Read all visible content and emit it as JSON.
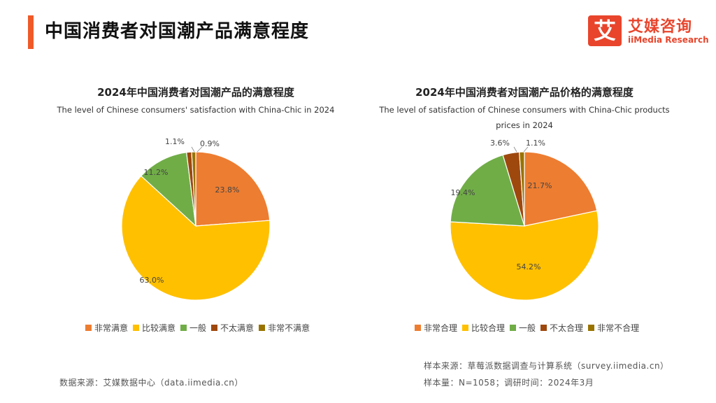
{
  "page": {
    "title": "中国消费者对国潮产品满意程度",
    "logo_mark": "艾",
    "logo_cn": "艾媒咨询",
    "logo_en": "iiMedia Research",
    "accent_color": "#F05A28"
  },
  "chart_data": [
    {
      "type": "pie",
      "title": "2024年中国消费者对国潮产品的满意程度",
      "subtitle": "The level of Chinese consumers' satisfaction with China-Chic in 2024",
      "categories": [
        "非常满意",
        "比较满意",
        "一般",
        "不太满意",
        "非常不满意"
      ],
      "values": [
        23.8,
        63.0,
        11.2,
        1.1,
        0.9
      ],
      "data_labels": [
        "23.8%",
        "63.0%",
        "11.2%",
        "1.1%",
        "0.9%"
      ],
      "colors": [
        "#ED7D31",
        "#FFC000",
        "#70AD47",
        "#9E480E",
        "#997300"
      ],
      "legend": "bottom"
    },
    {
      "type": "pie",
      "title": "2024年中国消费者对国潮产品价格的满意程度",
      "subtitle": "The level of satisfaction of Chinese consumers with China-Chic products prices in 2024",
      "categories": [
        "非常合理",
        "比较合理",
        "一般",
        "不太合理",
        "非常不合理"
      ],
      "values": [
        21.7,
        54.2,
        19.4,
        3.6,
        1.1
      ],
      "data_labels": [
        "21.7%",
        "54.2%",
        "19.4%",
        "3.6%",
        "1.1%"
      ],
      "colors": [
        "#ED7D31",
        "#FFC000",
        "#70AD47",
        "#9E480E",
        "#997300"
      ],
      "legend": "bottom"
    }
  ],
  "footer": {
    "source_left": "数据来源：艾媒数据中心（data.iimedia.cn）",
    "sample_source": "样本来源：草莓派数据调查与计算系统（survey.iimedia.cn）",
    "sample_size": "样本量：N=1058；调研时间：2024年3月"
  }
}
